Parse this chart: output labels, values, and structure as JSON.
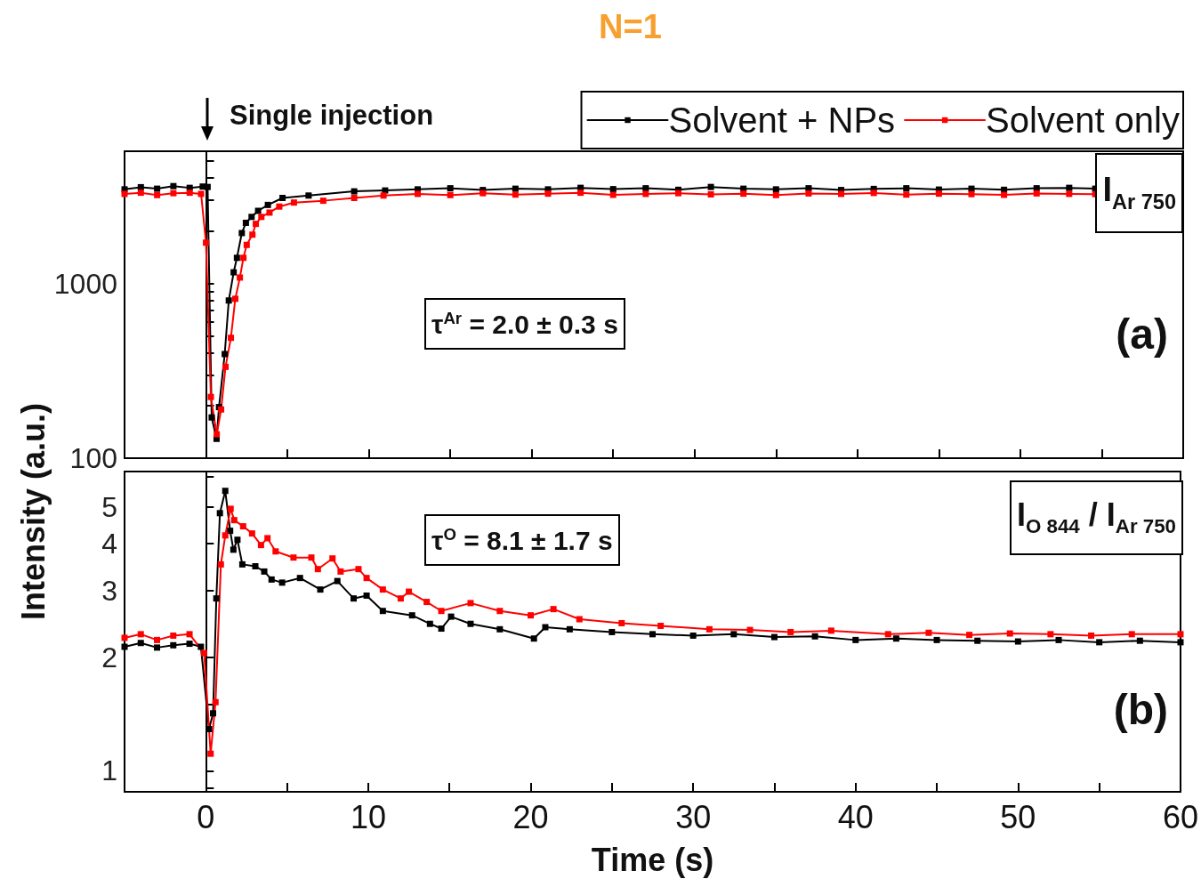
{
  "chart_data": [
    {
      "type": "line",
      "title": "N=1",
      "ylabel": "Intensity (a.u.)",
      "log": "y",
      "legend": "top right",
      "marker": "square",
      "line_style": "solid",
      "tick_labels": "y",
      "xlim": [
        -5,
        60
      ],
      "xticks": [
        {
          "value": 0,
          "label": null
        },
        {
          "value": 5,
          "label": null
        },
        {
          "value": 10,
          "label": null
        },
        {
          "value": 15,
          "label": null
        },
        {
          "value": 20,
          "label": null
        },
        {
          "value": 25,
          "label": null
        },
        {
          "value": 30,
          "label": null
        },
        {
          "value": 35,
          "label": null
        },
        {
          "value": 40,
          "label": null
        },
        {
          "value": 45,
          "label": null
        },
        {
          "value": 50,
          "label": null
        },
        {
          "value": 55,
          "label": null
        },
        {
          "value": 60,
          "label": null
        }
      ],
      "ylim": [
        100,
        5700
      ],
      "yticks": [
        100,
        {
          "value": 200,
          "label": null
        },
        {
          "value": 300,
          "label": null
        },
        {
          "value": 400,
          "label": null
        },
        {
          "value": 500,
          "label": null
        },
        {
          "value": 600,
          "label": null
        },
        {
          "value": 700,
          "label": null
        },
        {
          "value": 800,
          "label": null
        },
        {
          "value": 900,
          "label": null
        },
        1000,
        {
          "value": 2000,
          "label": null
        },
        {
          "value": 3000,
          "label": null
        },
        {
          "value": 4000,
          "label": null
        },
        {
          "value": 5000,
          "label": null
        }
      ],
      "annotations": [
        "Single injection",
        "τ$^{Ar}$ = 2.0 ± 0.3 s",
        "(a)",
        "I$_{Ar 750}$"
      ],
      "series": [
        {
          "name": "Solvent + NPs",
          "color": "#000000",
          "x": [
            -5,
            -4,
            -3,
            -2,
            -1,
            -0.2,
            0.1,
            0.35,
            0.65,
            0.8,
            1.15,
            1.4,
            1.7,
            1.9,
            2.2,
            2.45,
            2.8,
            3.2,
            3.8,
            4.7,
            6.3,
            9.1,
            11,
            13,
            15,
            17,
            19,
            21,
            23,
            25,
            27,
            29,
            31,
            33,
            35,
            37,
            39,
            41,
            43,
            45,
            47,
            49,
            51,
            53,
            54.6
          ],
          "values": [
            3450,
            3550,
            3480,
            3600,
            3520,
            3580,
            3560,
            171,
            129,
            196,
            394,
            798,
            1157,
            1400,
            1940,
            2220,
            2400,
            2600,
            2810,
            3080,
            3180,
            3360,
            3400,
            3450,
            3500,
            3420,
            3480,
            3450,
            3520,
            3460,
            3500,
            3430,
            3560,
            3480,
            3450,
            3500,
            3420,
            3470,
            3500,
            3440,
            3480,
            3430,
            3500,
            3520,
            3480
          ]
        },
        {
          "name": "Solvent only",
          "color": "#ff0000",
          "x": [
            -5,
            -4,
            -3,
            -2,
            -1,
            -0.3,
            0,
            0.3,
            0.66,
            0.93,
            1.2,
            1.53,
            1.8,
            2.08,
            2.3,
            2.5,
            2.85,
            3.06,
            3.4,
            3.9,
            4.5,
            5.4,
            7.2,
            9.1,
            10.9,
            13,
            15,
            17,
            19,
            21,
            23,
            25,
            27,
            29,
            31,
            33,
            35,
            37,
            39,
            41,
            43,
            45,
            47,
            49,
            51,
            53,
            54.6
          ],
          "values": [
            3250,
            3300,
            3200,
            3280,
            3300,
            3250,
            1710,
            224,
            137,
            190,
            333,
            488,
            816,
            1080,
            1400,
            1660,
            1900,
            2190,
            2400,
            2540,
            2750,
            2900,
            2970,
            3080,
            3180,
            3250,
            3200,
            3280,
            3220,
            3260,
            3300,
            3210,
            3250,
            3280,
            3230,
            3260,
            3200,
            3270,
            3250,
            3290,
            3220,
            3260,
            3240,
            3210,
            3270,
            3250,
            3240
          ]
        }
      ]
    },
    {
      "type": "line",
      "xlabel": "Time (s)",
      "log": "y",
      "marker": "square",
      "line_style": "solid",
      "xlim": [
        -5,
        60
      ],
      "xticks": [
        0,
        {
          "value": 5,
          "label": null
        },
        10,
        {
          "value": 15,
          "label": null
        },
        20,
        {
          "value": 25,
          "label": null
        },
        30,
        {
          "value": 35,
          "label": null
        },
        40,
        {
          "value": 45,
          "label": null
        },
        50,
        {
          "value": 55,
          "label": null
        },
        60
      ],
      "ylim": [
        0.88,
        6.2
      ],
      "yticks": [
        {
          "value": 0.9,
          "label": null
        },
        1,
        {
          "value": 1.5,
          "label": null
        },
        2,
        3,
        4,
        5,
        {
          "value": 6,
          "label": null
        }
      ],
      "annotations": [
        "τ$^{O}$ = 8.1 ± 1.7 s",
        "(b)",
        "I$_{O 844}$ / I$_{Ar 750}$"
      ],
      "series": [
        {
          "color": "#000000",
          "x": [
            -5,
            -4,
            -3,
            -2,
            -1,
            -0.3,
            0.2,
            0.45,
            0.65,
            0.87,
            1.2,
            1.5,
            1.7,
            1.95,
            2.25,
            3.05,
            3.6,
            4.05,
            4.7,
            5.8,
            7.05,
            8.1,
            9.1,
            9.9,
            10.9,
            12.7,
            13.8,
            14.5,
            15.1,
            16.3,
            18.1,
            20.2,
            20.9,
            22.4,
            25,
            27.5,
            30,
            32.5,
            35,
            37.5,
            40,
            42.5,
            45,
            47.5,
            50,
            52.5,
            55,
            57.5,
            60
          ],
          "values": [
            2.13,
            2.18,
            2.12,
            2.15,
            2.17,
            2.13,
            1.29,
            1.42,
            2.86,
            4.81,
            5.51,
            4.32,
            3.85,
            4.09,
            3.52,
            3.48,
            3.37,
            3.21,
            3.15,
            3.24,
            3.02,
            3.18,
            2.86,
            2.91,
            2.65,
            2.58,
            2.45,
            2.38,
            2.56,
            2.45,
            2.37,
            2.24,
            2.4,
            2.37,
            2.33,
            2.3,
            2.28,
            2.3,
            2.26,
            2.27,
            2.22,
            2.24,
            2.22,
            2.21,
            2.2,
            2.22,
            2.19,
            2.21,
            2.19
          ]
        },
        {
          "color": "#ff0000",
          "x": [
            -5,
            -4,
            -3,
            -2,
            -1,
            -0.1,
            0.3,
            0.6,
            0.93,
            1.2,
            1.53,
            1.75,
            2.3,
            2.85,
            3.4,
            3.8,
            4.3,
            5.4,
            6.5,
            6.9,
            7.8,
            8.3,
            9.4,
            9.9,
            10.9,
            12,
            12.5,
            13.6,
            14.5,
            16.3,
            18.1,
            20,
            21.4,
            23,
            25.6,
            28,
            31,
            33.5,
            36,
            38.5,
            42,
            44.5,
            47,
            49.5,
            52,
            54.5,
            57,
            60
          ],
          "values": [
            2.25,
            2.3,
            2.22,
            2.28,
            2.3,
            2.05,
            1.11,
            1.52,
            3.52,
            4.2,
            4.94,
            4.61,
            4.44,
            4.25,
            3.96,
            4.13,
            3.81,
            3.67,
            3.67,
            3.42,
            3.65,
            3.37,
            3.42,
            3.24,
            3.02,
            2.86,
            2.98,
            2.8,
            2.65,
            2.78,
            2.65,
            2.58,
            2.68,
            2.52,
            2.46,
            2.42,
            2.37,
            2.36,
            2.33,
            2.35,
            2.3,
            2.32,
            2.29,
            2.31,
            2.3,
            2.28,
            2.3,
            2.3
          ]
        }
      ]
    }
  ]
}
